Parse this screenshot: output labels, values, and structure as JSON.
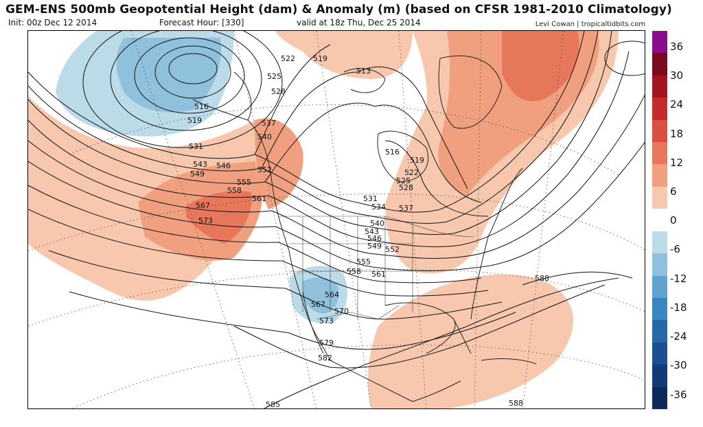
{
  "header": {
    "title": "GEM-ENS 500mb Geopotential Height (dam) & Anomaly (m) (based on CFSR 1981-2010 Climatology)",
    "init": "Init: 00z Dec 12 2014",
    "forecast_hour": "Forecast Hour: [330]",
    "valid": "valid at 18z Thu, Dec 25 2014",
    "credit": "Levi Cowan | tropicaltidbits.com"
  },
  "colorbar": {
    "labels": [
      "36",
      "30",
      "24",
      "18",
      "12",
      "6",
      "0",
      "-6",
      "-12",
      "-18",
      "-24",
      "-30",
      "-36"
    ],
    "colors": [
      "#8a0e8a",
      "#7a0a1e",
      "#a3141f",
      "#c62a2c",
      "#d9503f",
      "#e6775a",
      "#f0a07e",
      "#f7c8ae",
      "#ffffff",
      "#bcdbe8",
      "#8fc1dc",
      "#5fa3cf",
      "#3a86c0",
      "#2669ab",
      "#1b4f93",
      "#123a78",
      "#0d2a5c"
    ]
  },
  "contours": {
    "color": "#111111",
    "labels": [
      "516",
      "519",
      "522",
      "519",
      "513",
      "525",
      "528",
      "531",
      "537",
      "540",
      "543",
      "546",
      "549",
      "552",
      "555",
      "558",
      "561",
      "567",
      "573",
      "516",
      "519",
      "522",
      "525",
      "528",
      "531",
      "534",
      "537",
      "540",
      "543",
      "546",
      "549",
      "552",
      "555",
      "558",
      "561",
      "564",
      "567",
      "570",
      "573",
      "579",
      "582",
      "585",
      "588",
      "588"
    ]
  },
  "anomaly_colors": {
    "positive_light": "#f7c8ae",
    "positive_mid": "#f0a07e",
    "positive_strong": "#e6775a",
    "negative_light": "#bcdbe8",
    "negative_mid": "#8fc1dc",
    "negative_strong": "#5fa3cf"
  }
}
